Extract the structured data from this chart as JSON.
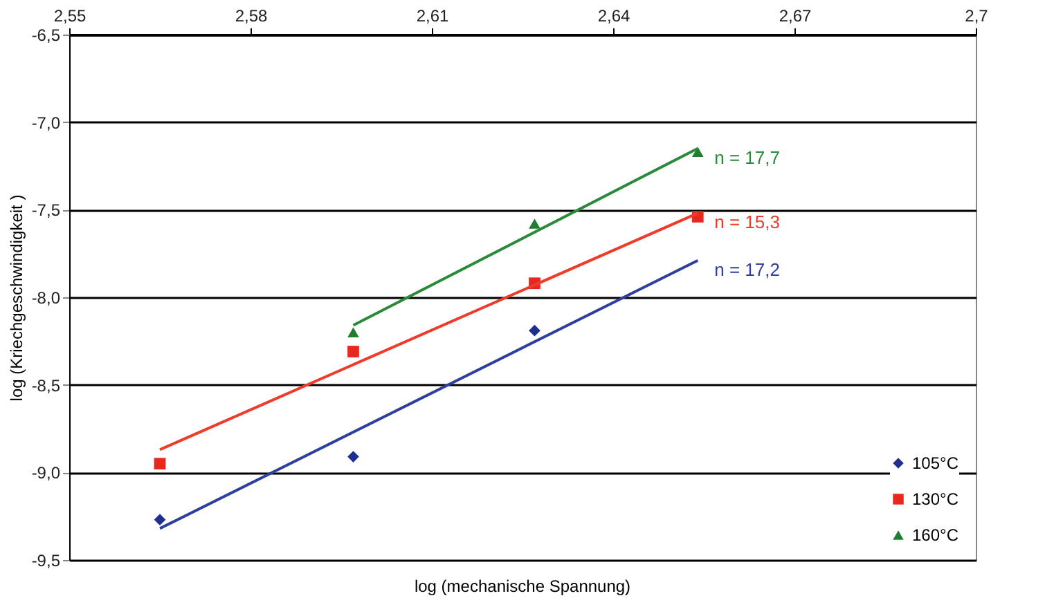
{
  "chart_data": {
    "type": "scatter",
    "xlabel": "log (mechanische Spannung)",
    "ylabel": "log (Kriechgeschwindigkeit )",
    "xlim": [
      2.55,
      2.7
    ],
    "xticks": [
      {
        "value": 2.55,
        "label": "2,55"
      },
      {
        "value": 2.58,
        "label": "2,58"
      },
      {
        "value": 2.61,
        "label": "2,61"
      },
      {
        "value": 2.64,
        "label": "2,64"
      },
      {
        "value": 2.67,
        "label": "2,67"
      },
      {
        "value": 2.7,
        "label": "2,7"
      }
    ],
    "ylim": [
      -9.5,
      -6.5
    ],
    "yticks": [
      {
        "value": -9.5,
        "label": "-9,5"
      },
      {
        "value": -9.0,
        "label": "-9,0"
      },
      {
        "value": -8.5,
        "label": "-8,5"
      },
      {
        "value": -8.0,
        "label": "-8,0"
      },
      {
        "value": -7.5,
        "label": "-7,5"
      },
      {
        "value": -7.0,
        "label": "-7,0"
      },
      {
        "value": -6.5,
        "label": "-6,5"
      }
    ],
    "grid": "y",
    "legend": "bottom right",
    "series": [
      {
        "name": "105°C",
        "color": "#1f2f8f",
        "marker": "diamond",
        "x": [
          2.565,
          2.597,
          2.627
        ],
        "values": [
          -9.27,
          -8.91,
          -8.19
        ]
      },
      {
        "name": "130°C",
        "color": "#e8281e",
        "marker": "square",
        "x": [
          2.565,
          2.597,
          2.627,
          2.654
        ],
        "values": [
          -8.95,
          -8.31,
          -7.92,
          -7.54
        ]
      },
      {
        "name": "160°C",
        "color": "#1f7f2f",
        "marker": "triangle",
        "x": [
          2.597,
          2.627,
          2.654
        ],
        "values": [
          -8.2,
          -7.58,
          -7.17
        ]
      },
      {
        "type": "line",
        "color": "#2e3f9f",
        "x": [
          2.565,
          2.654
        ],
        "values": [
          -9.32,
          -7.79
        ]
      },
      {
        "type": "line",
        "color": "#f03a2a",
        "x": [
          2.565,
          2.654
        ],
        "values": [
          -8.87,
          -7.52
        ]
      },
      {
        "type": "line",
        "color": "#2a8a3a",
        "x": [
          2.597,
          2.654
        ],
        "values": [
          -8.16,
          -7.15
        ]
      }
    ],
    "annotations": [
      "n = 17,2",
      "n = 15,3",
      "n = 17,7"
    ]
  }
}
